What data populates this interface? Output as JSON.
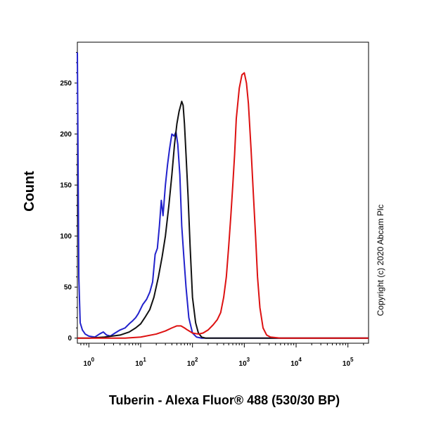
{
  "chart_data": {
    "type": "line",
    "xlabel": "Tuberin - Alexa Fluor® 488 (530/30 BP)",
    "ylabel": "Count",
    "x_scale": "log",
    "xlim": [
      0.6,
      250000
    ],
    "ylim": [
      -5,
      290
    ],
    "y_ticks": [
      0,
      50,
      100,
      150,
      200,
      250
    ],
    "y_tick_labels": [
      "0",
      "50",
      "100",
      "150",
      "200",
      "250"
    ],
    "x_ticks": [
      1,
      10,
      100,
      1000,
      10000,
      100000
    ],
    "x_tick_labels": [
      {
        "base": "10",
        "exp": "0"
      },
      {
        "base": "10",
        "exp": "1"
      },
      {
        "base": "10",
        "exp": "2"
      },
      {
        "base": "10",
        "exp": "3"
      },
      {
        "base": "10",
        "exp": "4"
      },
      {
        "base": "10",
        "exp": "5"
      }
    ],
    "copyright": "Copyright (c) 2020 Abcam Plc",
    "series": [
      {
        "color": "#2222cc",
        "points": [
          [
            0.6,
            280
          ],
          [
            0.64,
            60
          ],
          [
            0.68,
            15
          ],
          [
            0.75,
            8
          ],
          [
            0.85,
            4
          ],
          [
            1,
            2
          ],
          [
            1.3,
            1
          ],
          [
            1.6,
            4
          ],
          [
            1.9,
            6
          ],
          [
            2.2,
            3
          ],
          [
            2.6,
            2
          ],
          [
            3.2,
            5
          ],
          [
            4,
            8
          ],
          [
            5,
            10
          ],
          [
            6,
            14
          ],
          [
            7,
            17
          ],
          [
            8,
            20
          ],
          [
            9,
            24
          ],
          [
            11,
            33
          ],
          [
            13,
            38
          ],
          [
            15,
            45
          ],
          [
            17,
            55
          ],
          [
            19,
            82
          ],
          [
            21,
            88
          ],
          [
            23,
            110
          ],
          [
            25,
            135
          ],
          [
            27,
            120
          ],
          [
            30,
            150
          ],
          [
            33,
            170
          ],
          [
            36,
            185
          ],
          [
            40,
            200
          ],
          [
            44,
            198
          ],
          [
            48,
            202
          ],
          [
            52,
            190
          ],
          [
            57,
            160
          ],
          [
            62,
            110
          ],
          [
            68,
            80
          ],
          [
            75,
            50
          ],
          [
            85,
            20
          ],
          [
            100,
            5
          ],
          [
            120,
            1
          ],
          [
            150,
            0
          ],
          [
            300,
            0
          ],
          [
            1000,
            0
          ],
          [
            10000,
            0
          ],
          [
            100000,
            0
          ],
          [
            250000,
            0
          ]
        ]
      },
      {
        "color": "#111111",
        "points": [
          [
            0.6,
            0
          ],
          [
            1,
            0
          ],
          [
            2,
            1
          ],
          [
            4,
            3
          ],
          [
            6,
            6
          ],
          [
            8,
            10
          ],
          [
            10,
            14
          ],
          [
            12,
            20
          ],
          [
            15,
            28
          ],
          [
            18,
            40
          ],
          [
            22,
            60
          ],
          [
            26,
            80
          ],
          [
            30,
            100
          ],
          [
            35,
            130
          ],
          [
            40,
            160
          ],
          [
            45,
            190
          ],
          [
            50,
            210
          ],
          [
            55,
            222
          ],
          [
            62,
            232
          ],
          [
            66,
            228
          ],
          [
            70,
            210
          ],
          [
            75,
            180
          ],
          [
            82,
            140
          ],
          [
            90,
            90
          ],
          [
            100,
            40
          ],
          [
            115,
            15
          ],
          [
            130,
            5
          ],
          [
            150,
            1
          ],
          [
            180,
            0
          ],
          [
            1000,
            0
          ],
          [
            100000,
            0
          ],
          [
            250000,
            0
          ]
        ]
      },
      {
        "color": "#dd1111",
        "points": [
          [
            0.6,
            0
          ],
          [
            5,
            0
          ],
          [
            10,
            1
          ],
          [
            20,
            4
          ],
          [
            30,
            7
          ],
          [
            40,
            10
          ],
          [
            50,
            12
          ],
          [
            60,
            12
          ],
          [
            70,
            10
          ],
          [
            80,
            8
          ],
          [
            100,
            5
          ],
          [
            130,
            4
          ],
          [
            160,
            5
          ],
          [
            200,
            8
          ],
          [
            250,
            13
          ],
          [
            300,
            18
          ],
          [
            350,
            25
          ],
          [
            400,
            40
          ],
          [
            450,
            60
          ],
          [
            500,
            90
          ],
          [
            550,
            120
          ],
          [
            600,
            150
          ],
          [
            650,
            180
          ],
          [
            700,
            215
          ],
          [
            800,
            245
          ],
          [
            900,
            258
          ],
          [
            1000,
            260
          ],
          [
            1100,
            250
          ],
          [
            1200,
            230
          ],
          [
            1350,
            185
          ],
          [
            1500,
            140
          ],
          [
            1650,
            100
          ],
          [
            1800,
            60
          ],
          [
            2000,
            30
          ],
          [
            2300,
            10
          ],
          [
            2700,
            3
          ],
          [
            3200,
            1
          ],
          [
            5000,
            0
          ],
          [
            100000,
            0
          ],
          [
            250000,
            0
          ]
        ]
      }
    ]
  }
}
